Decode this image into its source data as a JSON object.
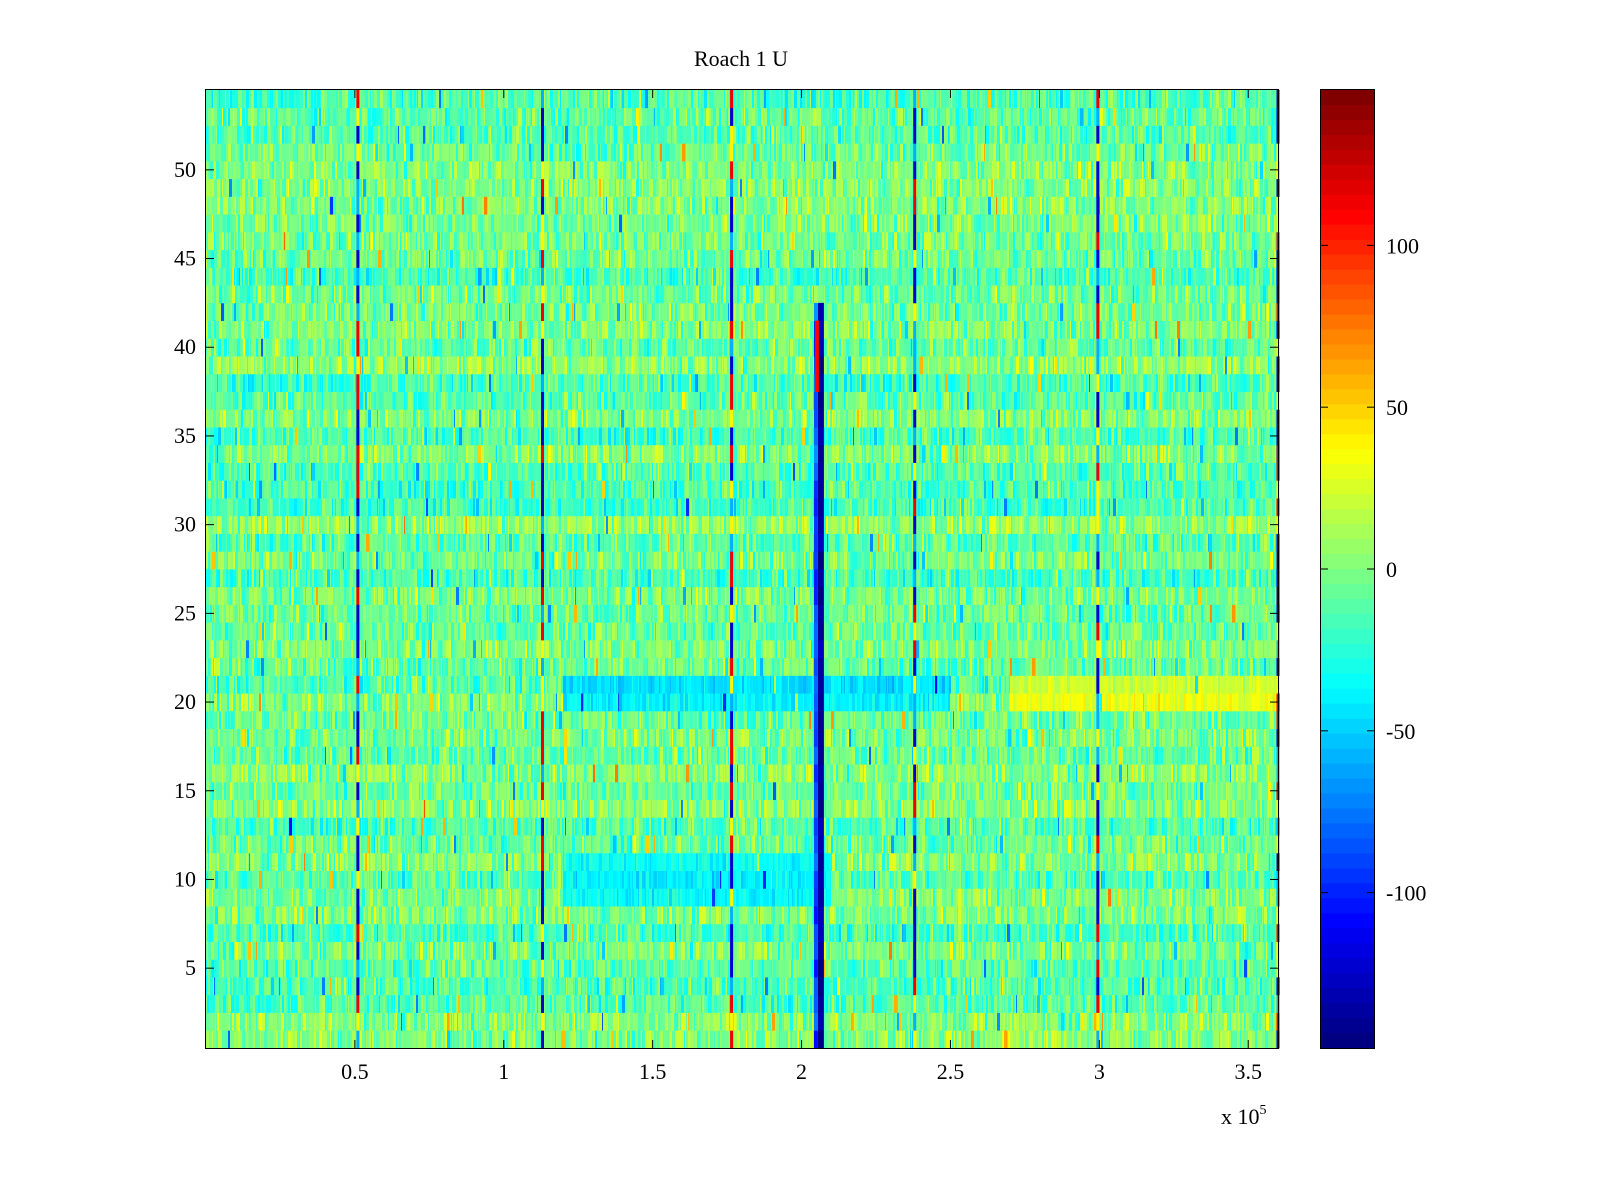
{
  "chart_data": {
    "type": "heatmap",
    "title": "Roach 1 U",
    "xlabel": "",
    "ylabel": "",
    "x_multiplier": "x 10",
    "x_multiplier_exponent": "5",
    "xlim": [
      0,
      3.6
    ],
    "ylim": [
      0.5,
      54.5
    ],
    "xticks": [
      0.5,
      1,
      1.5,
      2,
      2.5,
      3,
      3.5
    ],
    "xtick_labels": [
      "0.5",
      "1",
      "1.5",
      "2",
      "2.5",
      "3",
      "3.5"
    ],
    "yticks": [
      5,
      10,
      15,
      20,
      25,
      30,
      35,
      40,
      45,
      50
    ],
    "ytick_labels": [
      "5",
      "10",
      "15",
      "20",
      "25",
      "30",
      "35",
      "40",
      "45",
      "50"
    ],
    "rows": 54,
    "colorbar": {
      "colormap": "jet",
      "range": [
        -148,
        148
      ],
      "ticks": [
        100,
        50,
        0,
        -50,
        -100
      ],
      "tick_labels": [
        "100",
        "50",
        "0",
        "-50",
        "-100"
      ],
      "steps": 64
    },
    "features": [
      {
        "kind": "strong-negative-column",
        "x": 2.065,
        "y_range": [
          0.5,
          42.5
        ],
        "value": -140
      },
      {
        "kind": "strong-positive-cells",
        "x": 2.055,
        "y_values": [
          41,
          40,
          39,
          38
        ],
        "value": 110
      },
      {
        "kind": "periodic-column",
        "x": 0.51,
        "value": "mixed"
      },
      {
        "kind": "periodic-column",
        "x": 1.13,
        "value": "mixed"
      },
      {
        "kind": "periodic-column",
        "x": 1.765,
        "value": "mixed"
      },
      {
        "kind": "periodic-column",
        "x": 2.38,
        "value": "mixed"
      },
      {
        "kind": "periodic-column",
        "x": 2.995,
        "value": "mixed"
      },
      {
        "kind": "periodic-column",
        "x": 3.6,
        "value": "mixed"
      },
      {
        "kind": "negative-band",
        "x_range": [
          1.2,
          2.5
        ],
        "y_range": [
          19.5,
          21.5
        ],
        "value": -40
      },
      {
        "kind": "negative-band",
        "x_range": [
          1.2,
          2.1
        ],
        "y_range": [
          8.5,
          11.5
        ],
        "value": -35
      },
      {
        "kind": "positive-band",
        "x_range": [
          2.7,
          3.6
        ],
        "y_range": [
          19.5,
          21.5
        ],
        "value": 30
      }
    ],
    "background": {
      "mean": -5,
      "spread": 25
    }
  }
}
